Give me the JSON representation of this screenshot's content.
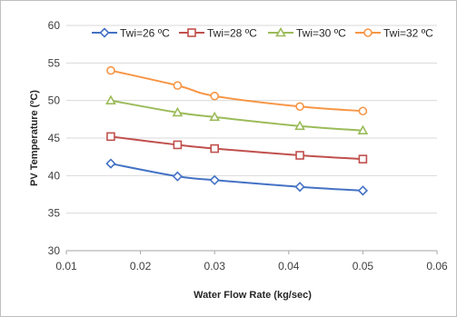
{
  "chart_data": {
    "type": "line",
    "title": "",
    "xlabel": "Water Flow Rate (kg/sec)",
    "ylabel": "PV Temperature (ºC)",
    "xlim": [
      0.01,
      0.06
    ],
    "ylim": [
      30,
      60
    ],
    "xticks": [
      0.01,
      0.02,
      0.03,
      0.04,
      0.05,
      0.06
    ],
    "yticks": [
      30,
      35,
      40,
      45,
      50,
      55,
      60
    ],
    "xtick_labels": [
      "0.01",
      "0.02",
      "0.03",
      "0.04",
      "0.05",
      "0.06"
    ],
    "ytick_labels": [
      "30",
      "35",
      "40",
      "45",
      "50",
      "55",
      "60"
    ],
    "grid": "horizontal",
    "legend_position": "top",
    "x": [
      0.016,
      0.025,
      0.03,
      0.0415,
      0.05
    ],
    "series": [
      {
        "name": "Twi=26 ºC",
        "values": [
          41.6,
          39.9,
          39.4,
          38.5,
          38.0
        ],
        "color": "#4472c4",
        "marker": "diamond"
      },
      {
        "name": "Twi=28 ºC",
        "values": [
          45.2,
          44.1,
          43.6,
          42.7,
          42.2
        ],
        "color": "#c0504d",
        "marker": "square"
      },
      {
        "name": "Twi=30 ºC",
        "values": [
          50.0,
          48.4,
          47.8,
          46.6,
          46.0
        ],
        "color": "#9bbb59",
        "marker": "triangle"
      },
      {
        "name": "Twi=32 ºC",
        "values": [
          54.0,
          52.0,
          50.6,
          49.2,
          48.6
        ],
        "color": "#f79646",
        "marker": "circle"
      }
    ]
  }
}
